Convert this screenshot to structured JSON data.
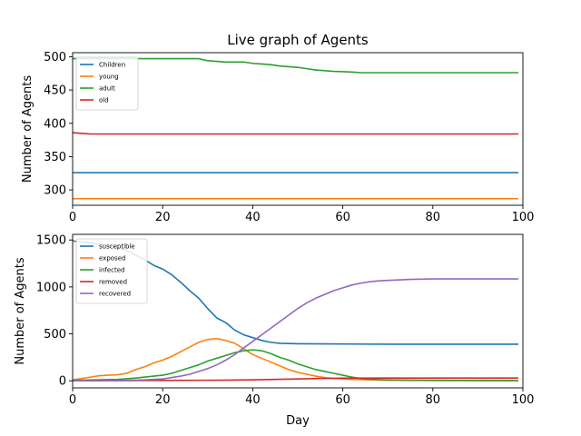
{
  "window_title": "Live graph of Agents",
  "chart_data": [
    {
      "type": "line",
      "title": "Live graph of Agents",
      "xlabel": "",
      "ylabel": "Number of Agents",
      "xlim": [
        0,
        100
      ],
      "ylim": [
        277,
        506
      ],
      "xticks": [
        0,
        20,
        40,
        60,
        80,
        100
      ],
      "yticks": [
        300,
        350,
        400,
        450,
        500
      ],
      "grid": false,
      "legend": "top-left",
      "series": [
        {
          "name": "Children",
          "color": "#1f77b4",
          "points": [
            [
              0,
              326
            ],
            [
              99,
              326
            ]
          ]
        },
        {
          "name": "young",
          "color": "#ff7f0e",
          "points": [
            [
              0,
              287
            ],
            [
              99,
              287
            ]
          ]
        },
        {
          "name": "adult",
          "color": "#2ca02c",
          "points": [
            [
              0,
              497
            ],
            [
              28,
              497
            ],
            [
              30,
              494
            ],
            [
              32,
              493
            ],
            [
              34,
              492
            ],
            [
              38,
              492
            ],
            [
              40,
              490
            ],
            [
              42,
              489
            ],
            [
              44,
              488
            ],
            [
              46,
              486
            ],
            [
              48,
              485
            ],
            [
              50,
              484
            ],
            [
              52,
              482
            ],
            [
              54,
              480
            ],
            [
              56,
              479
            ],
            [
              58,
              478
            ],
            [
              62,
              477
            ],
            [
              64,
              476
            ],
            [
              99,
              476
            ]
          ]
        },
        {
          "name": "old",
          "color": "#d62728",
          "points": [
            [
              0,
              386
            ],
            [
              2,
              385
            ],
            [
              4,
              384
            ],
            [
              99,
              384
            ]
          ]
        }
      ]
    },
    {
      "type": "line",
      "title": "",
      "xlabel": "Day",
      "ylabel": "Number of Agents",
      "xlim": [
        0,
        100
      ],
      "ylim": [
        -75,
        1560
      ],
      "xticks": [
        0,
        20,
        40,
        60,
        80,
        100
      ],
      "yticks": [
        0,
        500,
        1000,
        1500
      ],
      "grid": false,
      "legend": "top-left",
      "series": [
        {
          "name": "susceptible",
          "color": "#1f77b4",
          "points": [
            [
              0,
              1490
            ],
            [
              4,
              1470
            ],
            [
              8,
              1440
            ],
            [
              12,
              1390
            ],
            [
              14,
              1340
            ],
            [
              16,
              1290
            ],
            [
              18,
              1230
            ],
            [
              20,
              1190
            ],
            [
              22,
              1130
            ],
            [
              24,
              1050
            ],
            [
              26,
              960
            ],
            [
              28,
              880
            ],
            [
              30,
              770
            ],
            [
              32,
              670
            ],
            [
              34,
              620
            ],
            [
              36,
              540
            ],
            [
              38,
              490
            ],
            [
              40,
              460
            ],
            [
              42,
              430
            ],
            [
              44,
              410
            ],
            [
              46,
              400
            ],
            [
              50,
              395
            ],
            [
              60,
              392
            ],
            [
              70,
              390
            ],
            [
              80,
              390
            ],
            [
              99,
              390
            ]
          ]
        },
        {
          "name": "exposed",
          "color": "#ff7f0e",
          "points": [
            [
              0,
              10
            ],
            [
              2,
              25
            ],
            [
              4,
              40
            ],
            [
              6,
              55
            ],
            [
              8,
              60
            ],
            [
              10,
              65
            ],
            [
              12,
              80
            ],
            [
              14,
              120
            ],
            [
              16,
              150
            ],
            [
              18,
              190
            ],
            [
              20,
              220
            ],
            [
              22,
              260
            ],
            [
              24,
              310
            ],
            [
              26,
              360
            ],
            [
              28,
              410
            ],
            [
              30,
              440
            ],
            [
              32,
              450
            ],
            [
              34,
              430
            ],
            [
              36,
              400
            ],
            [
              38,
              340
            ],
            [
              40,
              280
            ],
            [
              42,
              240
            ],
            [
              44,
              200
            ],
            [
              46,
              160
            ],
            [
              48,
              120
            ],
            [
              50,
              90
            ],
            [
              52,
              70
            ],
            [
              54,
              50
            ],
            [
              56,
              35
            ],
            [
              58,
              25
            ],
            [
              60,
              20
            ],
            [
              62,
              15
            ],
            [
              66,
              10
            ],
            [
              70,
              5
            ],
            [
              80,
              3
            ],
            [
              99,
              2
            ]
          ]
        },
        {
          "name": "infected",
          "color": "#2ca02c",
          "points": [
            [
              0,
              5
            ],
            [
              10,
              15
            ],
            [
              14,
              30
            ],
            [
              18,
              50
            ],
            [
              20,
              60
            ],
            [
              22,
              80
            ],
            [
              24,
              110
            ],
            [
              26,
              140
            ],
            [
              28,
              170
            ],
            [
              30,
              210
            ],
            [
              32,
              240
            ],
            [
              34,
              270
            ],
            [
              36,
              300
            ],
            [
              38,
              320
            ],
            [
              40,
              330
            ],
            [
              42,
              320
            ],
            [
              44,
              290
            ],
            [
              46,
              250
            ],
            [
              48,
              220
            ],
            [
              50,
              180
            ],
            [
              52,
              150
            ],
            [
              54,
              120
            ],
            [
              56,
              100
            ],
            [
              58,
              80
            ],
            [
              60,
              60
            ],
            [
              62,
              40
            ],
            [
              64,
              25
            ],
            [
              66,
              15
            ],
            [
              70,
              10
            ],
            [
              80,
              5
            ],
            [
              99,
              2
            ]
          ]
        },
        {
          "name": "removed",
          "color": "#d62728",
          "points": [
            [
              0,
              0
            ],
            [
              10,
              2
            ],
            [
              20,
              4
            ],
            [
              30,
              6
            ],
            [
              40,
              10
            ],
            [
              50,
              20
            ],
            [
              55,
              25
            ],
            [
              60,
              28
            ],
            [
              70,
              30
            ],
            [
              80,
              30
            ],
            [
              99,
              30
            ]
          ]
        },
        {
          "name": "recovered",
          "color": "#9467bd",
          "points": [
            [
              0,
              0
            ],
            [
              10,
              3
            ],
            [
              16,
              10
            ],
            [
              20,
              20
            ],
            [
              24,
              50
            ],
            [
              26,
              70
            ],
            [
              28,
              100
            ],
            [
              30,
              130
            ],
            [
              32,
              170
            ],
            [
              34,
              220
            ],
            [
              36,
              280
            ],
            [
              38,
              350
            ],
            [
              40,
              420
            ],
            [
              42,
              490
            ],
            [
              44,
              560
            ],
            [
              46,
              630
            ],
            [
              48,
              700
            ],
            [
              50,
              770
            ],
            [
              52,
              830
            ],
            [
              54,
              880
            ],
            [
              56,
              920
            ],
            [
              58,
              960
            ],
            [
              60,
              990
            ],
            [
              62,
              1020
            ],
            [
              64,
              1040
            ],
            [
              66,
              1055
            ],
            [
              68,
              1065
            ],
            [
              70,
              1070
            ],
            [
              75,
              1080
            ],
            [
              80,
              1085
            ],
            [
              90,
              1085
            ],
            [
              99,
              1085
            ]
          ]
        }
      ]
    }
  ]
}
